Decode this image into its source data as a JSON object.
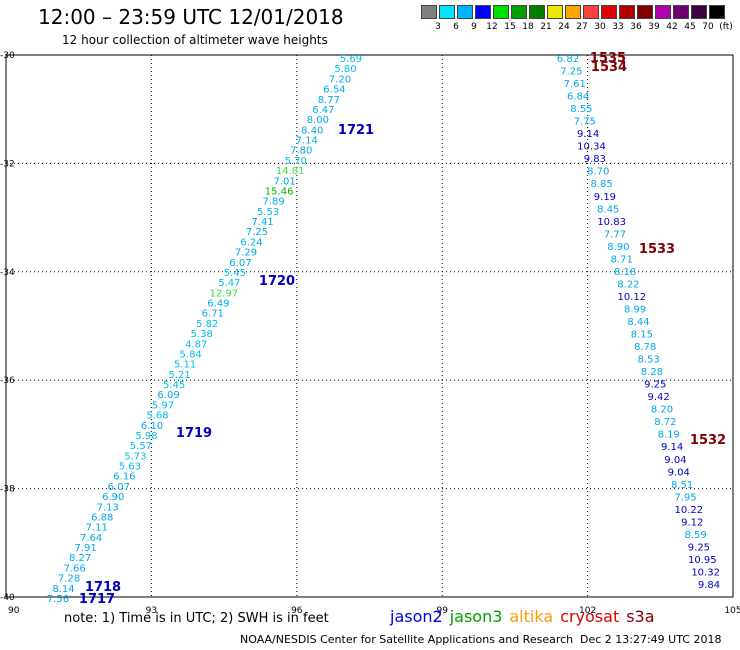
{
  "header": {
    "title": "12:00 – 23:59 UTC 12/01/2018",
    "subtitle": "12 hour collection of altimeter wave heights"
  },
  "legend": {
    "colors": [
      "#808080",
      "#00e5ff",
      "#00b4ff",
      "#0000ff",
      "#00e000",
      "#00a000",
      "#008000",
      "#e8e800",
      "#ffa500",
      "#ff4040",
      "#e00000",
      "#b00000",
      "#800000",
      "#b000b0",
      "#700070",
      "#400040",
      "#000000"
    ],
    "labels": [
      "3",
      "6",
      "9",
      "12",
      "15",
      "18",
      "21",
      "24",
      "27",
      "30",
      "33",
      "36",
      "39",
      "42",
      "45",
      "70",
      "(ft)"
    ]
  },
  "map": {
    "lon_ticks": [
      "90",
      "93",
      "96",
      "99",
      "102",
      "105"
    ],
    "lat_ticks": [
      "-30",
      "-32",
      "-34",
      "-36",
      "-38",
      "-40"
    ],
    "lon_range": [
      90,
      105
    ],
    "lat_range": [
      -30,
      -40
    ]
  },
  "track_west": [
    {
      "v": "5.69",
      "c": "#00c0e8"
    },
    {
      "v": "5.80",
      "c": "#00c0e8"
    },
    {
      "v": "7.20",
      "c": "#00a8e8"
    },
    {
      "v": "6.54",
      "c": "#00a8e8"
    },
    {
      "v": "8.77",
      "c": "#00a8e8"
    },
    {
      "v": "6.47",
      "c": "#00a8e8"
    },
    {
      "v": "8.00",
      "c": "#00a8e8"
    },
    {
      "v": "8.40",
      "c": "#00a8e8"
    },
    {
      "v": "7.14",
      "c": "#00a8e8"
    },
    {
      "v": "7.80",
      "c": "#00a8e8"
    },
    {
      "v": "5.70",
      "c": "#00c0e8"
    },
    {
      "v": "14.81",
      "c": "#40e040"
    },
    {
      "v": "7.01",
      "c": "#00a8e8"
    },
    {
      "v": "15.46",
      "c": "#00b000"
    },
    {
      "v": "7.89",
      "c": "#00a8e8"
    },
    {
      "v": "5.53",
      "c": "#00c0e8"
    },
    {
      "v": "7.41",
      "c": "#00a8e8"
    },
    {
      "v": "7.25",
      "c": "#00a8e8"
    },
    {
      "v": "6.24",
      "c": "#00a8e8"
    },
    {
      "v": "7.29",
      "c": "#00a8e8"
    },
    {
      "v": "6.07",
      "c": "#00a8e8"
    },
    {
      "v": "5.45",
      "c": "#00c0e8"
    },
    {
      "v": "5.47",
      "c": "#00c0e8"
    },
    {
      "v": "12.97",
      "c": "#40e040"
    },
    {
      "v": "6.49",
      "c": "#00a8e8"
    },
    {
      "v": "6.71",
      "c": "#00a8e8"
    },
    {
      "v": "5.82",
      "c": "#00c0e8"
    },
    {
      "v": "5.38",
      "c": "#00c0e8"
    },
    {
      "v": "4.87",
      "c": "#00c0e8"
    },
    {
      "v": "5.84",
      "c": "#00c0e8"
    },
    {
      "v": "5.11",
      "c": "#00c0e8"
    },
    {
      "v": "5.21",
      "c": "#00c0e8"
    },
    {
      "v": "5.45",
      "c": "#00c0e8"
    },
    {
      "v": "6.09",
      "c": "#00a8e8"
    },
    {
      "v": "5.97",
      "c": "#00c0e8"
    },
    {
      "v": "5.68",
      "c": "#00c0e8"
    },
    {
      "v": "6.10",
      "c": "#00a8e8"
    },
    {
      "v": "5.98",
      "c": "#00c0e8"
    },
    {
      "v": "5.57",
      "c": "#00c0e8"
    },
    {
      "v": "5.73",
      "c": "#00c0e8"
    },
    {
      "v": "5.63",
      "c": "#00c0e8"
    },
    {
      "v": "6.16",
      "c": "#00a8e8"
    },
    {
      "v": "6.07",
      "c": "#00a8e8"
    },
    {
      "v": "6.90",
      "c": "#00a8e8"
    },
    {
      "v": "7.13",
      "c": "#00a8e8"
    },
    {
      "v": "6.88",
      "c": "#00a8e8"
    },
    {
      "v": "7.11",
      "c": "#00a8e8"
    },
    {
      "v": "7.64",
      "c": "#00a8e8"
    },
    {
      "v": "7.91",
      "c": "#00a8e8"
    },
    {
      "v": "8.27",
      "c": "#00a8e8"
    },
    {
      "v": "7.66",
      "c": "#00a8e8"
    },
    {
      "v": "7.28",
      "c": "#00a8e8"
    },
    {
      "v": "8.14",
      "c": "#00a8e8"
    },
    {
      "v": "7.56",
      "c": "#00a8e8"
    }
  ],
  "track_east": [
    {
      "v": "6.82",
      "c": "#00a8e8"
    },
    {
      "v": "7.25",
      "c": "#00a8e8"
    },
    {
      "v": "7.61",
      "c": "#00a8e8"
    },
    {
      "v": "6.84",
      "c": "#00a8e8"
    },
    {
      "v": "8.55",
      "c": "#00a8e8"
    },
    {
      "v": "7.75",
      "c": "#00a8e8"
    },
    {
      "v": "9.14",
      "c": "#0000c0"
    },
    {
      "v": "10.34",
      "c": "#0000c0"
    },
    {
      "v": "9.83",
      "c": "#0000c0"
    },
    {
      "v": "8.70",
      "c": "#00a8e8"
    },
    {
      "v": "8.85",
      "c": "#00a8e8"
    },
    {
      "v": "9.19",
      "c": "#0000c0"
    },
    {
      "v": "8.45",
      "c": "#00a8e8"
    },
    {
      "v": "10.83",
      "c": "#0000c0"
    },
    {
      "v": "7.77",
      "c": "#00a8e8"
    },
    {
      "v": "8.90",
      "c": "#00a8e8"
    },
    {
      "v": "8.71",
      "c": "#00a8e8"
    },
    {
      "v": "8.18",
      "c": "#00a8e8"
    },
    {
      "v": "8.22",
      "c": "#00a8e8"
    },
    {
      "v": "10.12",
      "c": "#0000c0"
    },
    {
      "v": "8.99",
      "c": "#00a8e8"
    },
    {
      "v": "8.44",
      "c": "#00a8e8"
    },
    {
      "v": "8.15",
      "c": "#00a8e8"
    },
    {
      "v": "8.78",
      "c": "#00a8e8"
    },
    {
      "v": "8.53",
      "c": "#00a8e8"
    },
    {
      "v": "8.28",
      "c": "#00a8e8"
    },
    {
      "v": "9.25",
      "c": "#0000c0"
    },
    {
      "v": "9.42",
      "c": "#0000c0"
    },
    {
      "v": "8.20",
      "c": "#00a8e8"
    },
    {
      "v": "8.72",
      "c": "#00a8e8"
    },
    {
      "v": "8.19",
      "c": "#00a8e8"
    },
    {
      "v": "9.14",
      "c": "#0000c0"
    },
    {
      "v": "9.04",
      "c": "#0000c0"
    },
    {
      "v": "9.04",
      "c": "#0000c0"
    },
    {
      "v": "8.51",
      "c": "#00a8e8"
    },
    {
      "v": "7.95",
      "c": "#00a8e8"
    },
    {
      "v": "10.22",
      "c": "#0000c0"
    },
    {
      "v": "9.12",
      "c": "#0000c0"
    },
    {
      "v": "8.59",
      "c": "#00a8e8"
    },
    {
      "v": "9.25",
      "c": "#0000c0"
    },
    {
      "v": "10.95",
      "c": "#0000c0"
    },
    {
      "v": "10.32",
      "c": "#0000c0"
    },
    {
      "v": "9.84",
      "c": "#0000c0"
    }
  ],
  "time_labels_west": [
    {
      "t": "1721",
      "color": "#0000c0"
    },
    {
      "t": "1720",
      "color": "#0000c0"
    },
    {
      "t": "1719",
      "color": "#0000c0"
    },
    {
      "t": "1718",
      "color": "#0000c0"
    },
    {
      "t": "1717",
      "color": "#0000c0"
    }
  ],
  "time_labels_east": [
    {
      "t": "1535",
      "color": "#800000"
    },
    {
      "t": "1534",
      "color": "#800000"
    },
    {
      "t": "1533",
      "color": "#800000"
    },
    {
      "t": "1532",
      "color": "#800000"
    }
  ],
  "footer": {
    "note": "note: 1) Time is in UTC; 2) SWH is in feet",
    "credit": "NOAA/NESDIS Center for Satellite Applications and Research",
    "timestamp": "Dec  2 13:27:49 UTC 2018",
    "satellites": [
      {
        "name": "jason2",
        "color": "#0000e0"
      },
      {
        "name": "jason3",
        "color": "#00a000"
      },
      {
        "name": "altika",
        "color": "#ff9900"
      },
      {
        "name": "cryosat",
        "color": "#e00000"
      },
      {
        "name": "s3a",
        "color": "#800000"
      }
    ]
  }
}
